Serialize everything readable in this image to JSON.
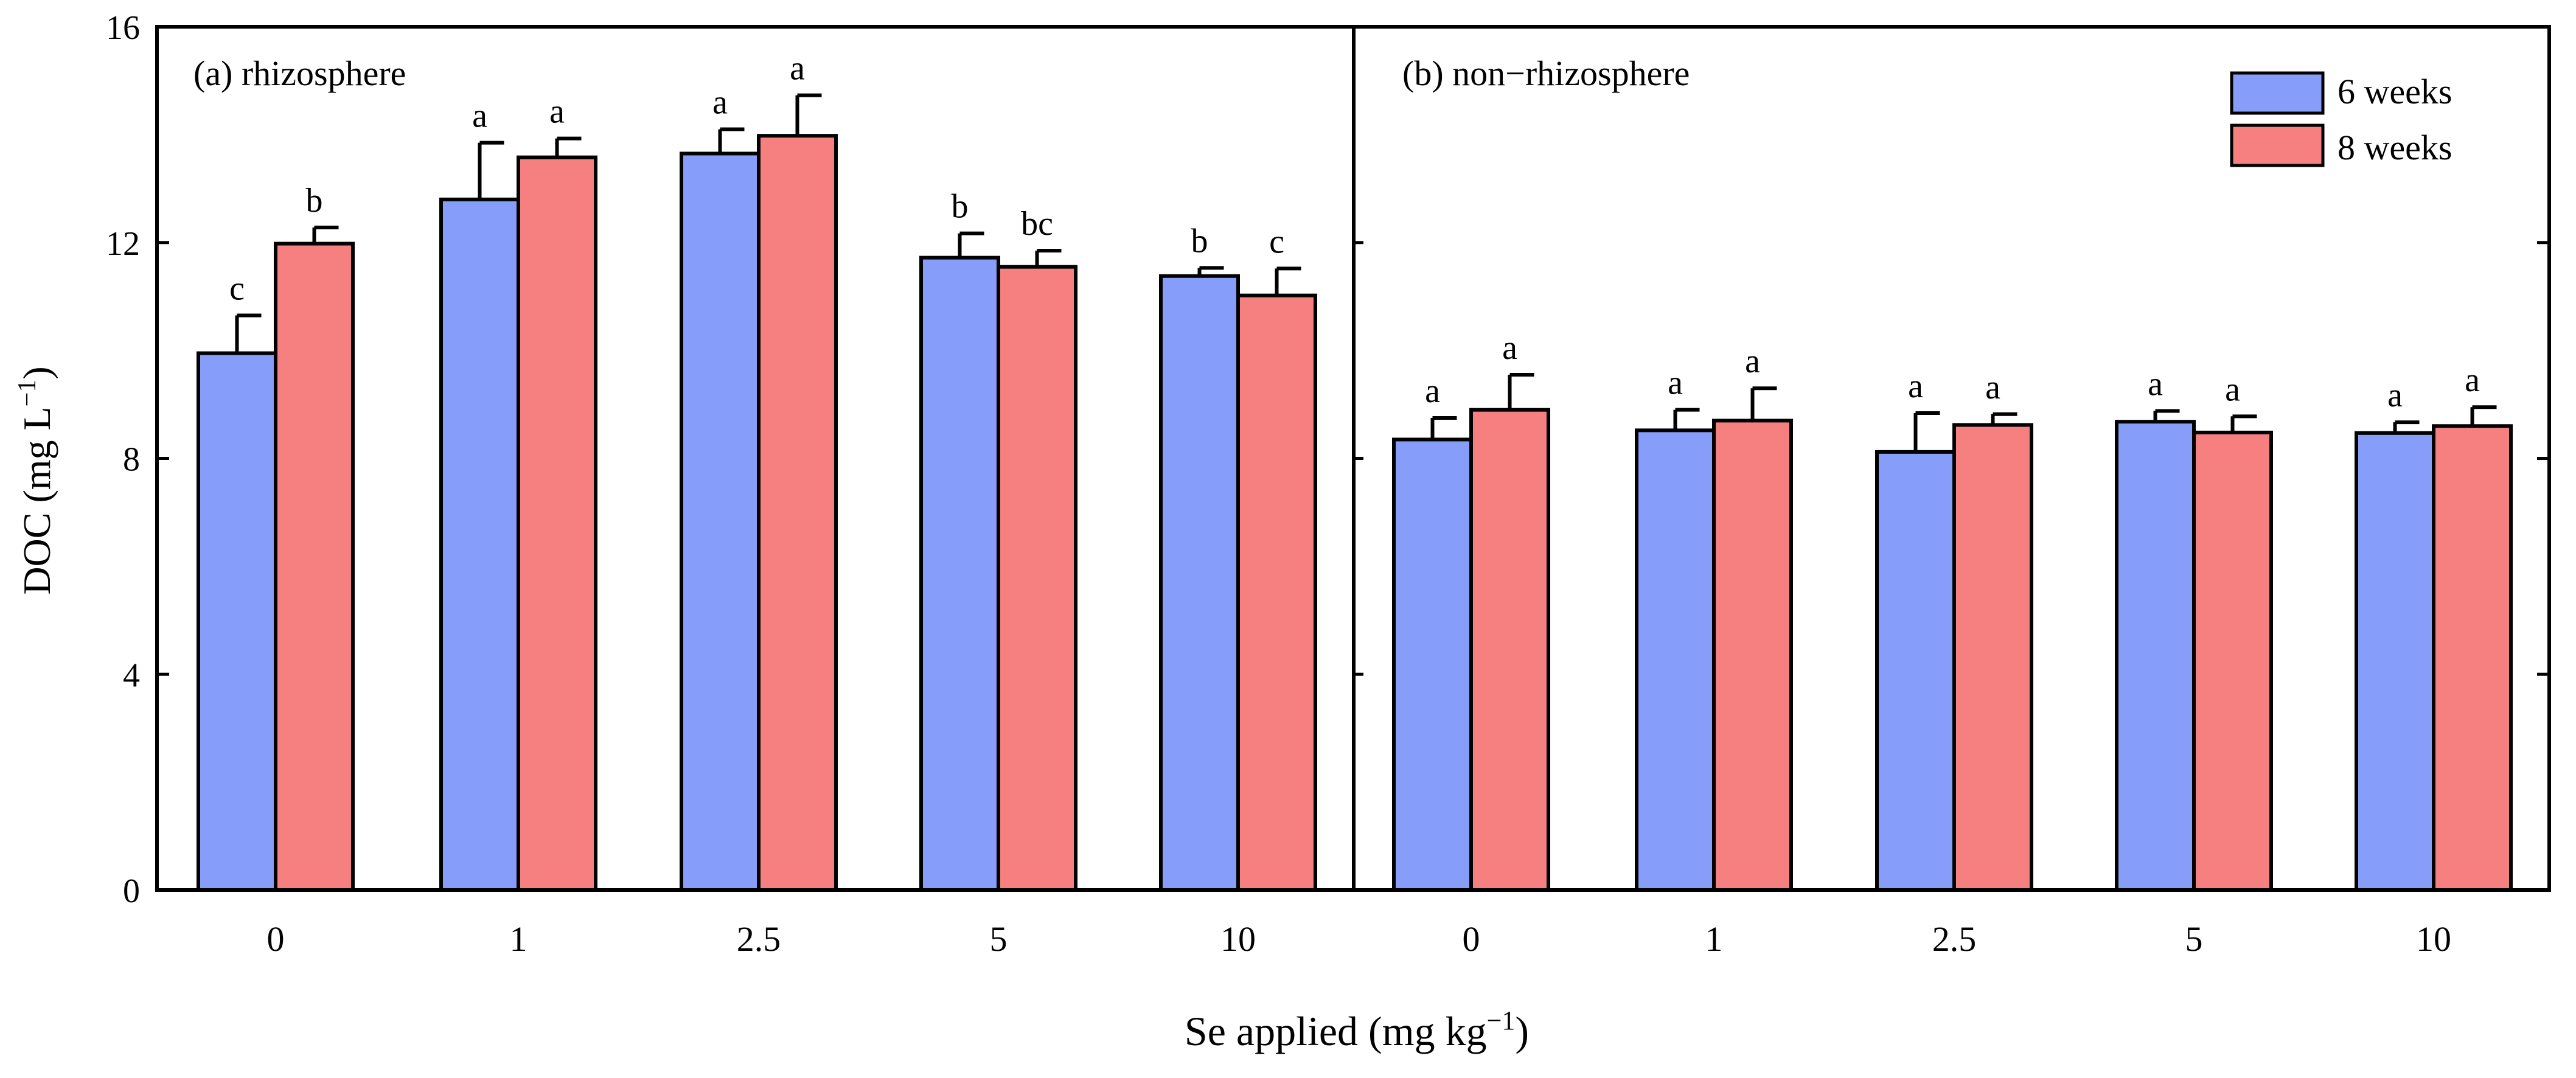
{
  "chart_data": {
    "type": "bar",
    "ylabel": "DOC (mg L",
    "ylabel_sup": "−1",
    "ylabel_end": ")",
    "xlabel": "Se applied (mg kg",
    "xlabel_sup": "−1",
    "xlabel_end": ")",
    "ylim": [
      0,
      16
    ],
    "yticks": [
      0,
      4,
      8,
      12,
      16
    ],
    "categories": [
      "0",
      "1",
      "2.5",
      "5",
      "10"
    ],
    "legend": {
      "position": "top-right",
      "entries": [
        {
          "name": "6 weeks",
          "color": "#869dfa"
        },
        {
          "name": "8 weeks",
          "color": "#f6807f"
        }
      ]
    },
    "panels": [
      {
        "title": "(a) rhizosphere",
        "series": [
          {
            "name": "6 weeks",
            "color": "#869dfa",
            "values": [
              9.95,
              12.8,
              13.65,
              11.72,
              11.38
            ],
            "errors": [
              0.7,
              1.05,
              0.45,
              0.45,
              0.15
            ],
            "letters": [
              "c",
              "a",
              "a",
              "b",
              "b"
            ]
          },
          {
            "name": "8 weeks",
            "color": "#f6807f",
            "values": [
              11.98,
              13.58,
              13.98,
              11.55,
              11.02
            ],
            "errors": [
              0.3,
              0.35,
              0.75,
              0.3,
              0.5
            ],
            "letters": [
              "b",
              "a",
              "a",
              "bc",
              "c"
            ]
          }
        ]
      },
      {
        "title": "(b) non−rhizosphere",
        "series": [
          {
            "name": "6 weeks",
            "color": "#869dfa",
            "values": [
              8.35,
              8.52,
              8.12,
              8.68,
              8.47
            ],
            "errors": [
              0.4,
              0.38,
              0.72,
              0.2,
              0.2
            ],
            "letters": [
              "a",
              "a",
              "a",
              "a",
              "a"
            ]
          },
          {
            "name": "8 weeks",
            "color": "#f6807f",
            "values": [
              8.9,
              8.7,
              8.62,
              8.48,
              8.6
            ],
            "errors": [
              0.65,
              0.6,
              0.2,
              0.3,
              0.35
            ],
            "letters": [
              "a",
              "a",
              "a",
              "a",
              "a"
            ]
          }
        ]
      }
    ]
  }
}
